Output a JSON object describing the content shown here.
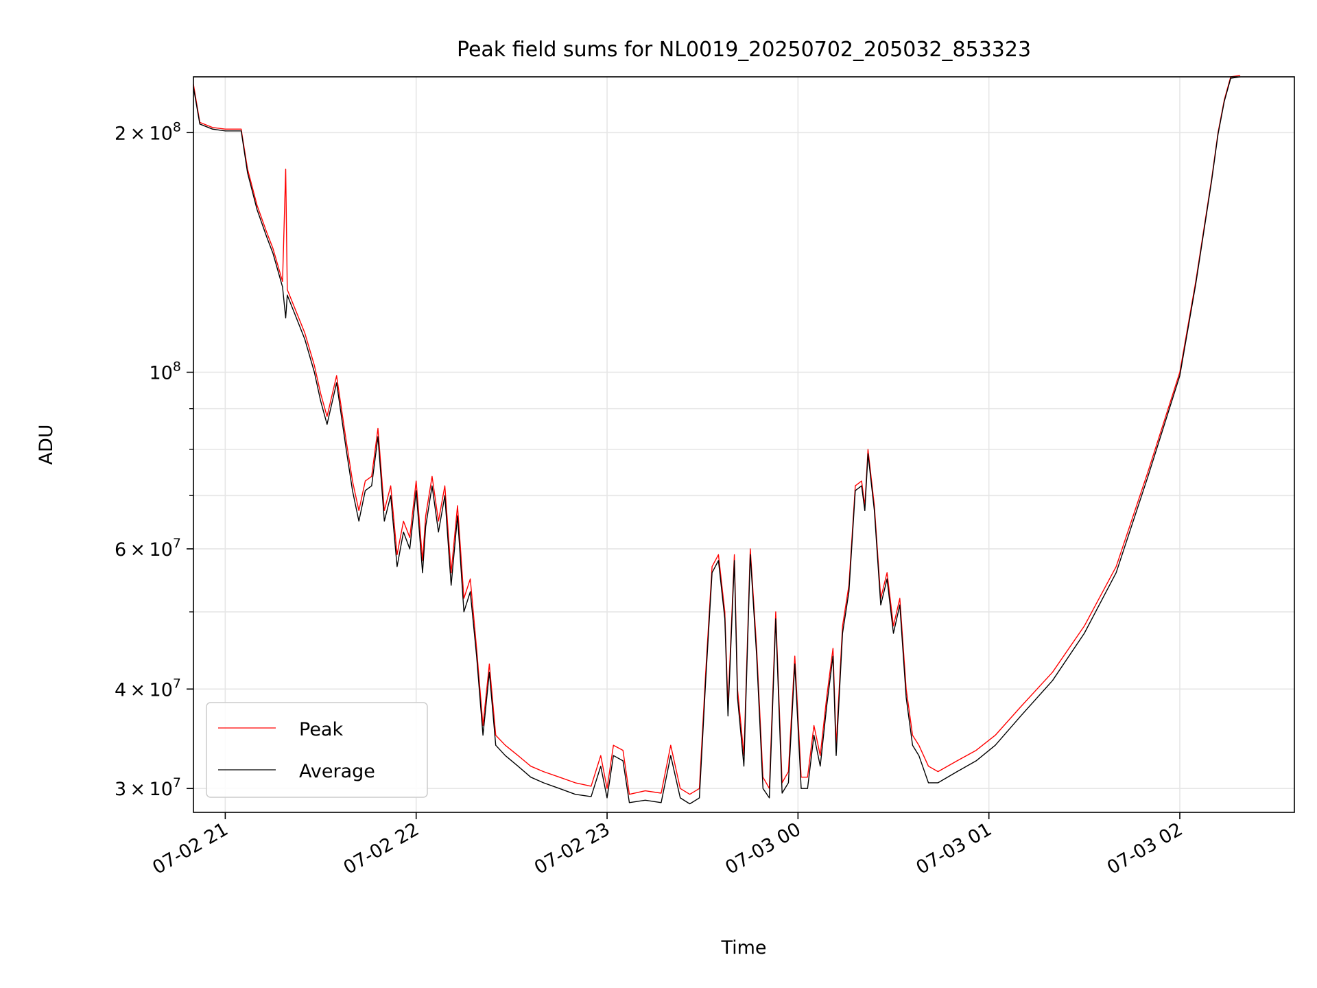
{
  "chart_data": {
    "type": "line",
    "title": "Peak field sums for NL0019_20250702_205032_853323",
    "xlabel": "Time",
    "ylabel": "ADU",
    "yscale": "log",
    "ylim": [
      28000000,
      235000000
    ],
    "xlim": [
      "2025-07-02 20:50",
      "2025-07-03 02:36"
    ],
    "grid": true,
    "legend_position": "lower-left",
    "x_ticks": [
      {
        "value": "2025-07-02 21:00",
        "label": "07-02 21"
      },
      {
        "value": "2025-07-02 22:00",
        "label": "07-02 22"
      },
      {
        "value": "2025-07-02 23:00",
        "label": "07-02 23"
      },
      {
        "value": "2025-07-03 00:00",
        "label": "07-03 00"
      },
      {
        "value": "2025-07-03 01:00",
        "label": "07-03 01"
      },
      {
        "value": "2025-07-03 02:00",
        "label": "07-03 02"
      }
    ],
    "y_major_ticks": [
      {
        "value": 30000000,
        "mantissa": "3",
        "base": "10",
        "exponent": "7"
      },
      {
        "value": 40000000,
        "mantissa": "4",
        "base": "10",
        "exponent": "7"
      },
      {
        "value": 60000000,
        "mantissa": "6",
        "base": "10",
        "exponent": "7"
      },
      {
        "value": 100000000,
        "mantissa": "",
        "base": "10",
        "exponent": "8"
      },
      {
        "value": 200000000,
        "mantissa": "2",
        "base": "10",
        "exponent": "8"
      }
    ],
    "y_minor_ticks": [
      50000000,
      70000000,
      80000000,
      90000000
    ],
    "series": [
      {
        "name": "Peak",
        "color": "#ff0000",
        "points": [
          [
            "2025-07-02 20:50",
            230000000
          ],
          [
            "2025-07-02 20:52",
            206000000
          ],
          [
            "2025-07-02 20:56",
            203000000
          ],
          [
            "2025-07-02 21:00",
            202000000
          ],
          [
            "2025-07-02 21:05",
            202000000
          ],
          [
            "2025-07-02 21:07",
            180000000
          ],
          [
            "2025-07-02 21:10",
            162000000
          ],
          [
            "2025-07-02 21:13",
            150000000
          ],
          [
            "2025-07-02 21:15",
            143000000
          ],
          [
            "2025-07-02 21:18",
            130000000
          ],
          [
            "2025-07-02 21:19",
            180000000
          ],
          [
            "2025-07-02 21:19.5",
            127000000
          ],
          [
            "2025-07-02 21:22",
            120000000
          ],
          [
            "2025-07-02 21:25",
            112000000
          ],
          [
            "2025-07-02 21:28",
            102000000
          ],
          [
            "2025-07-02 21:30",
            94000000
          ],
          [
            "2025-07-02 21:32",
            88000000
          ],
          [
            "2025-07-02 21:35",
            99000000
          ],
          [
            "2025-07-02 21:38",
            82000000
          ],
          [
            "2025-07-02 21:40",
            73000000
          ],
          [
            "2025-07-02 21:42",
            67000000
          ],
          [
            "2025-07-02 21:44",
            73000000
          ],
          [
            "2025-07-02 21:46",
            74000000
          ],
          [
            "2025-07-02 21:48",
            85000000
          ],
          [
            "2025-07-02 21:50",
            67000000
          ],
          [
            "2025-07-02 21:52",
            72000000
          ],
          [
            "2025-07-02 21:54",
            59000000
          ],
          [
            "2025-07-02 21:56",
            65000000
          ],
          [
            "2025-07-02 21:58",
            62000000
          ],
          [
            "2025-07-02 22:00",
            73000000
          ],
          [
            "2025-07-02 22:02",
            58000000
          ],
          [
            "2025-07-02 22:03",
            66000000
          ],
          [
            "2025-07-02 22:05",
            74000000
          ],
          [
            "2025-07-02 22:07",
            65000000
          ],
          [
            "2025-07-02 22:09",
            72000000
          ],
          [
            "2025-07-02 22:11",
            56000000
          ],
          [
            "2025-07-02 22:13",
            68000000
          ],
          [
            "2025-07-02 22:15",
            52000000
          ],
          [
            "2025-07-02 22:17",
            55000000
          ],
          [
            "2025-07-02 22:19",
            45000000
          ],
          [
            "2025-07-02 22:21",
            36000000
          ],
          [
            "2025-07-02 22:23",
            43000000
          ],
          [
            "2025-07-02 22:25",
            35000000
          ],
          [
            "2025-07-02 22:28",
            34000000
          ],
          [
            "2025-07-02 22:32",
            33000000
          ],
          [
            "2025-07-02 22:36",
            32000000
          ],
          [
            "2025-07-02 22:40",
            31500000
          ],
          [
            "2025-07-02 22:45",
            31000000
          ],
          [
            "2025-07-02 22:50",
            30500000
          ],
          [
            "2025-07-02 22:55",
            30200000
          ],
          [
            "2025-07-02 22:58",
            33000000
          ],
          [
            "2025-07-02 23:00",
            30000000
          ],
          [
            "2025-07-02 23:02",
            34000000
          ],
          [
            "2025-07-02 23:05",
            33500000
          ],
          [
            "2025-07-02 23:07",
            29500000
          ],
          [
            "2025-07-02 23:12",
            29800000
          ],
          [
            "2025-07-02 23:17",
            29600000
          ],
          [
            "2025-07-02 23:20",
            34000000
          ],
          [
            "2025-07-02 23:23",
            30000000
          ],
          [
            "2025-07-02 23:26",
            29500000
          ],
          [
            "2025-07-02 23:29",
            30000000
          ],
          [
            "2025-07-02 23:31",
            42000000
          ],
          [
            "2025-07-02 23:33",
            57000000
          ],
          [
            "2025-07-02 23:35",
            59000000
          ],
          [
            "2025-07-02 23:37",
            50000000
          ],
          [
            "2025-07-02 23:38",
            38000000
          ],
          [
            "2025-07-02 23:40",
            59000000
          ],
          [
            "2025-07-02 23:41",
            40000000
          ],
          [
            "2025-07-02 23:43",
            33000000
          ],
          [
            "2025-07-02 23:45",
            60000000
          ],
          [
            "2025-07-02 23:47",
            45000000
          ],
          [
            "2025-07-02 23:49",
            31000000
          ],
          [
            "2025-07-02 23:51",
            30000000
          ],
          [
            "2025-07-02 23:53",
            50000000
          ],
          [
            "2025-07-02 23:55",
            30500000
          ],
          [
            "2025-07-02 23:57",
            31500000
          ],
          [
            "2025-07-02 23:59",
            44000000
          ],
          [
            "2025-07-03 00:01",
            31000000
          ],
          [
            "2025-07-03 00:03",
            31000000
          ],
          [
            "2025-07-03 00:05",
            36000000
          ],
          [
            "2025-07-03 00:07",
            33000000
          ],
          [
            "2025-07-03 00:09",
            39000000
          ],
          [
            "2025-07-03 00:11",
            45000000
          ],
          [
            "2025-07-03 00:12",
            34000000
          ],
          [
            "2025-07-03 00:14",
            48000000
          ],
          [
            "2025-07-03 00:16",
            54000000
          ],
          [
            "2025-07-03 00:18",
            72000000
          ],
          [
            "2025-07-03 00:20",
            73000000
          ],
          [
            "2025-07-03 00:21",
            68000000
          ],
          [
            "2025-07-03 00:22",
            80000000
          ],
          [
            "2025-07-03 00:24",
            68000000
          ],
          [
            "2025-07-03 00:26",
            52000000
          ],
          [
            "2025-07-03 00:28",
            56000000
          ],
          [
            "2025-07-03 00:30",
            48000000
          ],
          [
            "2025-07-03 00:32",
            52000000
          ],
          [
            "2025-07-03 00:34",
            40000000
          ],
          [
            "2025-07-03 00:36",
            35000000
          ],
          [
            "2025-07-03 00:38",
            34000000
          ],
          [
            "2025-07-03 00:41",
            32000000
          ],
          [
            "2025-07-03 00:44",
            31500000
          ],
          [
            "2025-07-03 00:50",
            32500000
          ],
          [
            "2025-07-03 00:56",
            33500000
          ],
          [
            "2025-07-03 01:02",
            35000000
          ],
          [
            "2025-07-03 01:10",
            38000000
          ],
          [
            "2025-07-03 01:20",
            42000000
          ],
          [
            "2025-07-03 01:30",
            48000000
          ],
          [
            "2025-07-03 01:40",
            57000000
          ],
          [
            "2025-07-03 01:50",
            75000000
          ],
          [
            "2025-07-03 02:00",
            100000000
          ],
          [
            "2025-07-03 02:05",
            130000000
          ],
          [
            "2025-07-03 02:10",
            175000000
          ],
          [
            "2025-07-03 02:12",
            200000000
          ],
          [
            "2025-07-03 02:14",
            220000000
          ],
          [
            "2025-07-03 02:16",
            235000000
          ],
          [
            "2025-07-03 02:19",
            236000000
          ]
        ]
      },
      {
        "name": "Average",
        "color": "#000000",
        "points": [
          [
            "2025-07-02 20:50",
            228000000
          ],
          [
            "2025-07-02 20:52",
            205000000
          ],
          [
            "2025-07-02 20:56",
            202000000
          ],
          [
            "2025-07-02 21:00",
            201000000
          ],
          [
            "2025-07-02 21:05",
            201000000
          ],
          [
            "2025-07-02 21:07",
            178000000
          ],
          [
            "2025-07-02 21:10",
            160000000
          ],
          [
            "2025-07-02 21:13",
            148000000
          ],
          [
            "2025-07-02 21:15",
            141000000
          ],
          [
            "2025-07-02 21:18",
            128000000
          ],
          [
            "2025-07-02 21:19",
            117000000
          ],
          [
            "2025-07-02 21:19.5",
            125000000
          ],
          [
            "2025-07-02 21:22",
            118000000
          ],
          [
            "2025-07-02 21:25",
            110000000
          ],
          [
            "2025-07-02 21:28",
            100000000
          ],
          [
            "2025-07-02 21:30",
            92000000
          ],
          [
            "2025-07-02 21:32",
            86000000
          ],
          [
            "2025-07-02 21:35",
            97000000
          ],
          [
            "2025-07-02 21:38",
            80000000
          ],
          [
            "2025-07-02 21:40",
            71000000
          ],
          [
            "2025-07-02 21:42",
            65000000
          ],
          [
            "2025-07-02 21:44",
            71000000
          ],
          [
            "2025-07-02 21:46",
            72000000
          ],
          [
            "2025-07-02 21:48",
            83000000
          ],
          [
            "2025-07-02 21:50",
            65000000
          ],
          [
            "2025-07-02 21:52",
            70000000
          ],
          [
            "2025-07-02 21:54",
            57000000
          ],
          [
            "2025-07-02 21:56",
            63000000
          ],
          [
            "2025-07-02 21:58",
            60000000
          ],
          [
            "2025-07-02 22:00",
            71000000
          ],
          [
            "2025-07-02 22:02",
            56000000
          ],
          [
            "2025-07-02 22:03",
            64000000
          ],
          [
            "2025-07-02 22:05",
            72000000
          ],
          [
            "2025-07-02 22:07",
            63000000
          ],
          [
            "2025-07-02 22:09",
            70000000
          ],
          [
            "2025-07-02 22:11",
            54000000
          ],
          [
            "2025-07-02 22:13",
            66000000
          ],
          [
            "2025-07-02 22:15",
            50000000
          ],
          [
            "2025-07-02 22:17",
            53000000
          ],
          [
            "2025-07-02 22:19",
            44000000
          ],
          [
            "2025-07-02 22:21",
            35000000
          ],
          [
            "2025-07-02 22:23",
            42000000
          ],
          [
            "2025-07-02 22:25",
            34000000
          ],
          [
            "2025-07-02 22:28",
            33000000
          ],
          [
            "2025-07-02 22:32",
            32000000
          ],
          [
            "2025-07-02 22:36",
            31000000
          ],
          [
            "2025-07-02 22:40",
            30500000
          ],
          [
            "2025-07-02 22:45",
            30000000
          ],
          [
            "2025-07-02 22:50",
            29500000
          ],
          [
            "2025-07-02 22:55",
            29300000
          ],
          [
            "2025-07-02 22:58",
            32000000
          ],
          [
            "2025-07-02 23:00",
            29200000
          ],
          [
            "2025-07-02 23:02",
            33000000
          ],
          [
            "2025-07-02 23:05",
            32500000
          ],
          [
            "2025-07-02 23:07",
            28800000
          ],
          [
            "2025-07-02 23:12",
            29000000
          ],
          [
            "2025-07-02 23:17",
            28800000
          ],
          [
            "2025-07-02 23:20",
            33000000
          ],
          [
            "2025-07-02 23:23",
            29200000
          ],
          [
            "2025-07-02 23:26",
            28700000
          ],
          [
            "2025-07-02 23:29",
            29200000
          ],
          [
            "2025-07-02 23:31",
            41000000
          ],
          [
            "2025-07-02 23:33",
            56000000
          ],
          [
            "2025-07-02 23:35",
            58000000
          ],
          [
            "2025-07-02 23:37",
            49000000
          ],
          [
            "2025-07-02 23:38",
            37000000
          ],
          [
            "2025-07-02 23:40",
            58000000
          ],
          [
            "2025-07-02 23:41",
            39000000
          ],
          [
            "2025-07-02 23:43",
            32000000
          ],
          [
            "2025-07-02 23:45",
            59000000
          ],
          [
            "2025-07-02 23:47",
            44000000
          ],
          [
            "2025-07-02 23:49",
            30000000
          ],
          [
            "2025-07-02 23:51",
            29200000
          ],
          [
            "2025-07-02 23:53",
            49000000
          ],
          [
            "2025-07-02 23:55",
            29600000
          ],
          [
            "2025-07-02 23:57",
            30500000
          ],
          [
            "2025-07-02 23:59",
            43000000
          ],
          [
            "2025-07-03 00:01",
            30000000
          ],
          [
            "2025-07-03 00:03",
            30000000
          ],
          [
            "2025-07-03 00:05",
            35000000
          ],
          [
            "2025-07-03 00:07",
            32000000
          ],
          [
            "2025-07-03 00:09",
            38000000
          ],
          [
            "2025-07-03 00:11",
            44000000
          ],
          [
            "2025-07-03 00:12",
            33000000
          ],
          [
            "2025-07-03 00:14",
            47000000
          ],
          [
            "2025-07-03 00:16",
            53000000
          ],
          [
            "2025-07-03 00:18",
            71000000
          ],
          [
            "2025-07-03 00:20",
            72000000
          ],
          [
            "2025-07-03 00:21",
            67000000
          ],
          [
            "2025-07-03 00:22",
            79000000
          ],
          [
            "2025-07-03 00:24",
            67000000
          ],
          [
            "2025-07-03 00:26",
            51000000
          ],
          [
            "2025-07-03 00:28",
            55000000
          ],
          [
            "2025-07-03 00:30",
            47000000
          ],
          [
            "2025-07-03 00:32",
            51000000
          ],
          [
            "2025-07-03 00:34",
            39000000
          ],
          [
            "2025-07-03 00:36",
            34000000
          ],
          [
            "2025-07-03 00:38",
            33000000
          ],
          [
            "2025-07-03 00:41",
            30500000
          ],
          [
            "2025-07-03 00:44",
            30500000
          ],
          [
            "2025-07-03 00:50",
            31500000
          ],
          [
            "2025-07-03 00:56",
            32500000
          ],
          [
            "2025-07-03 01:02",
            34000000
          ],
          [
            "2025-07-03 01:10",
            37000000
          ],
          [
            "2025-07-03 01:20",
            41000000
          ],
          [
            "2025-07-03 01:30",
            47000000
          ],
          [
            "2025-07-03 01:40",
            56000000
          ],
          [
            "2025-07-03 01:50",
            74000000
          ],
          [
            "2025-07-03 02:00",
            99000000
          ],
          [
            "2025-07-03 02:05",
            129000000
          ],
          [
            "2025-07-03 02:10",
            174000000
          ],
          [
            "2025-07-03 02:12",
            199000000
          ],
          [
            "2025-07-03 02:14",
            219000000
          ],
          [
            "2025-07-03 02:16",
            234000000
          ],
          [
            "2025-07-03 02:19",
            235000000
          ]
        ]
      }
    ]
  }
}
